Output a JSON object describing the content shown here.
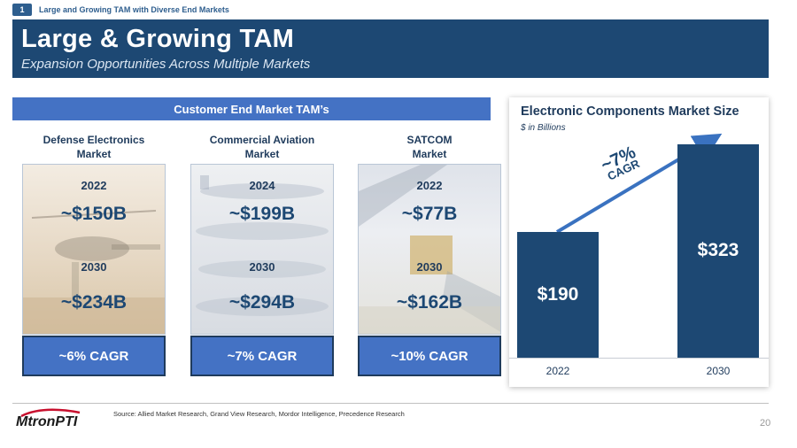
{
  "breadcrumb": {
    "number": "1",
    "text": "Large and Growing TAM with Diverse End Markets"
  },
  "header": {
    "title": "Large & Growing TAM",
    "subtitle": "Expansion Opportunities Across Multiple Markets"
  },
  "section": {
    "label": "Customer End Market TAM’s"
  },
  "markets": [
    {
      "name_line1": "Defense Electronics",
      "name_line2": "Market",
      "year_a": "2022",
      "value_a": "~$150B",
      "year_b": "2030",
      "value_b": "~$234B",
      "cagr": "~6% CAGR",
      "image_icon": "helicopter-image"
    },
    {
      "name_line1": "Commercial Aviation",
      "name_line2": "Market",
      "year_a": "2024",
      "value_a": "~$199B",
      "year_b": "2030",
      "value_b": "~$294B",
      "cagr": "~7% CAGR",
      "image_icon": "airplanes-image"
    },
    {
      "name_line1": "SATCOM",
      "name_line2": "Market",
      "year_a": "2022",
      "value_a": "~$77B",
      "year_b": "2030",
      "value_b": "~$162B",
      "cagr": "~10% CAGR",
      "image_icon": "satellite-image"
    }
  ],
  "chart_data": {
    "type": "bar",
    "title": "Electronic Components Market Size",
    "subtitle": "$ in Billions",
    "categories": [
      "2022",
      "2030"
    ],
    "values": [
      190,
      323
    ],
    "value_labels": [
      "$190",
      "$323"
    ],
    "annotation": {
      "pct": "~7%",
      "word": "CAGR"
    },
    "ylim": [
      0,
      340
    ],
    "grid": false,
    "colors": {
      "bar": "#1d4873",
      "arrow": "#3a72c0"
    }
  },
  "footer": {
    "logo_text": "MtronPTI",
    "source": "Source: Allied Market Research, Grand View Research, Mordor Intelligence, Precedence Research",
    "page": "20"
  },
  "colors": {
    "navy": "#1d4873",
    "accent_blue": "#4472c4"
  }
}
